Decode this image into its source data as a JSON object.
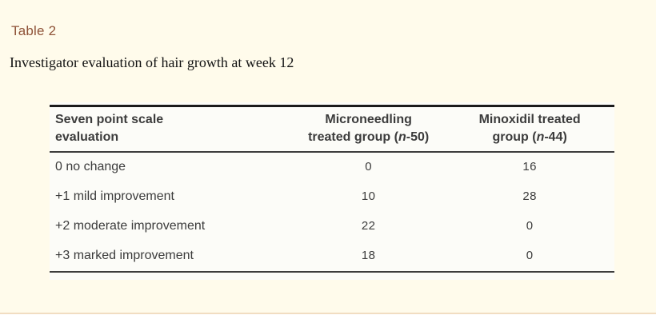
{
  "page": {
    "background": "#FFFBEB",
    "divider_color": "#F1DDC1"
  },
  "header": {
    "table_label": "Table 2",
    "table_label_color": "#8F5338",
    "caption": "Investigator evaluation of hair growth at week 12"
  },
  "table": {
    "background": "#FCFCF8",
    "text_color": "#3C3C3C",
    "border_color": "#1B1B1B",
    "columns": [
      {
        "id": "evaluation",
        "label": "Seven point scale evaluation"
      },
      {
        "id": "microneedling",
        "line1": "Microneedling",
        "line2_prefix": "treated group (",
        "italic_var": "n",
        "line2_suffix": "-50)"
      },
      {
        "id": "minoxidil",
        "line1": "Minoxidil treated",
        "line2_prefix": "group (",
        "italic_var": "n",
        "line2_suffix": "-44)"
      }
    ],
    "rows": [
      {
        "label": "0 no change",
        "microneedling": "0",
        "minoxidil": "16"
      },
      {
        "label": "+1 mild improvement",
        "microneedling": "10",
        "minoxidil": "28"
      },
      {
        "label": "+2 moderate improvement",
        "microneedling": "22",
        "minoxidil": "0"
      },
      {
        "label": "+3 marked improvement",
        "microneedling": "18",
        "minoxidil": "0"
      }
    ]
  }
}
